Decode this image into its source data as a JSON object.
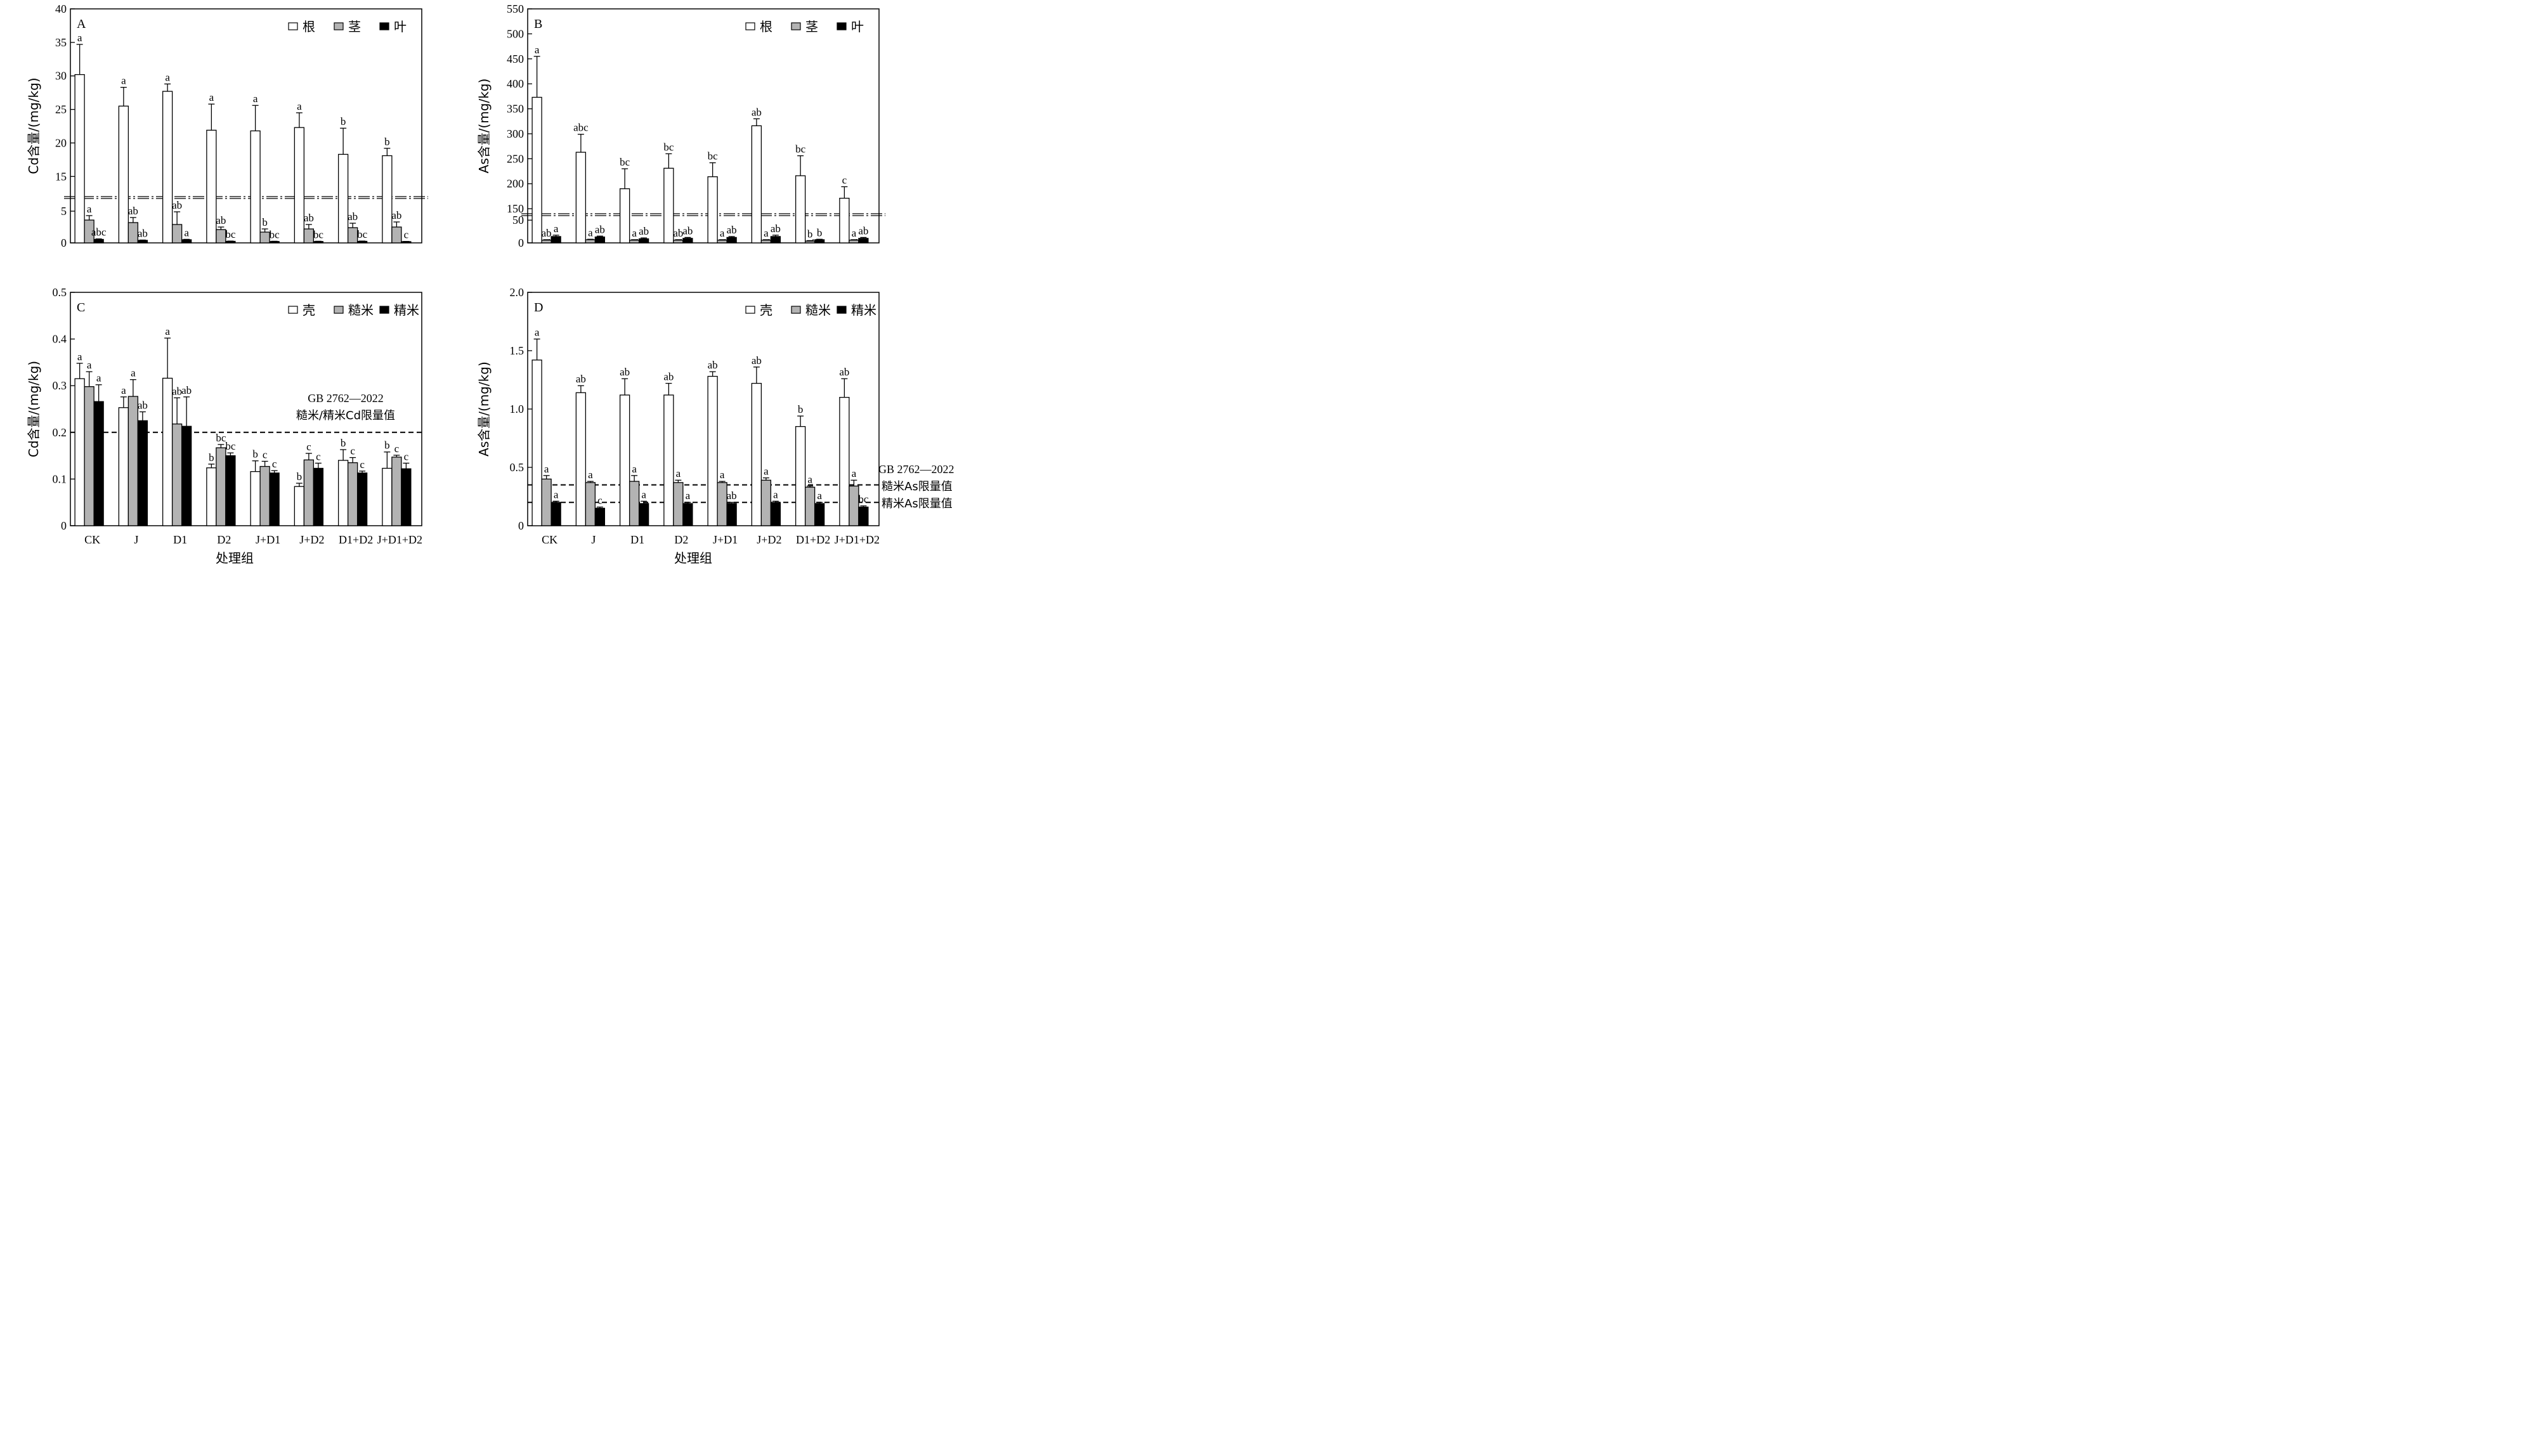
{
  "xlabel": "处理组",
  "categories": [
    "CK",
    "J",
    "D1",
    "D2",
    "J+D1",
    "J+D2",
    "D1+D2",
    "J+D1+D2"
  ],
  "chart_data": [
    {
      "panel": "A",
      "type": "bar",
      "ylabel": "Cd含量/(mg/kg)",
      "broken_axis": true,
      "ylim_lower": [
        0,
        7
      ],
      "ylim_upper": [
        12,
        40
      ],
      "yticks_lower": [
        0,
        5
      ],
      "yticks_upper": [
        15,
        20,
        25,
        30,
        35,
        40
      ],
      "legend": "top-right",
      "series": [
        {
          "name": "根",
          "fill": "#ffffff",
          "values": [
            30.2,
            25.5,
            27.7,
            21.9,
            21.8,
            22.3,
            18.3,
            18.1
          ],
          "errors": [
            4.5,
            2.8,
            1.1,
            3.9,
            3.8,
            2.2,
            3.9,
            1.1
          ],
          "labels": [
            "a",
            "a",
            "a",
            "a",
            "a",
            "a",
            "b",
            "b"
          ]
        },
        {
          "name": "茎",
          "fill": "#b3b3b3",
          "values": [
            3.6,
            3.2,
            2.9,
            2.1,
            1.7,
            2.2,
            2.4,
            2.5
          ],
          "errors": [
            0.7,
            0.8,
            2.0,
            0.4,
            0.5,
            0.7,
            0.7,
            0.8
          ],
          "labels": [
            "a",
            "ab",
            "ab",
            "ab",
            "b",
            "ab",
            "ab",
            "ab"
          ]
        },
        {
          "name": "叶",
          "fill": "#000000",
          "values": [
            0.55,
            0.4,
            0.5,
            0.25,
            0.22,
            0.22,
            0.25,
            0.2
          ],
          "errors": [
            0.08,
            0.05,
            0.06,
            0.04,
            0.04,
            0.04,
            0.04,
            0.03
          ],
          "labels": [
            "abc",
            "ab",
            "a",
            "bc",
            "bc",
            "bc",
            "bc",
            "c"
          ]
        }
      ]
    },
    {
      "panel": "B",
      "type": "bar",
      "ylabel": "As含量/(mg/kg)",
      "broken_axis": true,
      "ylim_lower": [
        0,
        60
      ],
      "ylim_upper": [
        140,
        550
      ],
      "yticks_lower": [
        0,
        50
      ],
      "yticks_upper": [
        150,
        200,
        250,
        300,
        350,
        400,
        450,
        500,
        550
      ],
      "legend": "top-right",
      "series": [
        {
          "name": "根",
          "fill": "#ffffff",
          "values": [
            373,
            263,
            190,
            231,
            214,
            316,
            216,
            171
          ],
          "errors": [
            82,
            36,
            40,
            29,
            28,
            14,
            40,
            23
          ],
          "labels": [
            "a",
            "abc",
            "bc",
            "bc",
            "bc",
            "ab",
            "bc",
            "c"
          ]
        },
        {
          "name": "茎",
          "fill": "#b3b3b3",
          "values": [
            6,
            7,
            6,
            6,
            6,
            6,
            4,
            6
          ],
          "errors": [
            1,
            1,
            1,
            1,
            1,
            1,
            1,
            1
          ],
          "labels": [
            "ab",
            "a",
            "a",
            "ab",
            "a",
            "a",
            "b",
            "a"
          ]
        },
        {
          "name": "叶",
          "fill": "#000000",
          "values": [
            14,
            13,
            9,
            10,
            12,
            14,
            7,
            10
          ],
          "errors": [
            3,
            2,
            2,
            2,
            2,
            3,
            1,
            2
          ],
          "labels": [
            "a",
            "ab",
            "ab",
            "ab",
            "ab",
            "ab",
            "b",
            "ab"
          ]
        }
      ]
    },
    {
      "panel": "C",
      "type": "bar",
      "ylabel": "Cd含量/(mg/kg)",
      "ylim": [
        0,
        0.5
      ],
      "yticks": [
        "0",
        "0.1",
        "0.2",
        "0.3",
        "0.4",
        "0.5"
      ],
      "legend": "top-right",
      "reference_lines": [
        {
          "value": 0.2
        }
      ],
      "annotation": [
        "GB 2762—2022",
        "糙米/精米Cd限量值"
      ],
      "series": [
        {
          "name": "壳",
          "fill": "#ffffff",
          "values": [
            0.315,
            0.253,
            0.316,
            0.124,
            0.116,
            0.084,
            0.14,
            0.123
          ],
          "errors": [
            0.033,
            0.023,
            0.086,
            0.008,
            0.023,
            0.007,
            0.023,
            0.035
          ],
          "labels": [
            "a",
            "a",
            "a",
            "b",
            "b",
            "b",
            "b",
            "b"
          ]
        },
        {
          "name": "糙米",
          "fill": "#b3b3b3",
          "values": [
            0.298,
            0.277,
            0.218,
            0.167,
            0.127,
            0.141,
            0.135,
            0.147
          ],
          "errors": [
            0.032,
            0.036,
            0.056,
            0.007,
            0.011,
            0.014,
            0.011,
            0.004
          ],
          "labels": [
            "a",
            "a",
            "ab",
            "bc",
            "c",
            "c",
            "c",
            "c"
          ]
        },
        {
          "name": "精米",
          "fill": "#000000",
          "values": [
            0.266,
            0.225,
            0.213,
            0.15,
            0.113,
            0.123,
            0.113,
            0.122
          ],
          "errors": [
            0.036,
            0.019,
            0.063,
            0.006,
            0.005,
            0.011,
            0.004,
            0.012
          ],
          "labels": [
            "a",
            "ab",
            "ab",
            "bc",
            "c",
            "c",
            "c",
            "c"
          ]
        }
      ]
    },
    {
      "panel": "D",
      "type": "bar",
      "ylabel": "As含量/(mg/kg)",
      "ylim": [
        0,
        2.0
      ],
      "yticks": [
        "0",
        "0.5",
        "1.0",
        "1.5",
        "2.0"
      ],
      "legend": "top-right",
      "reference_lines": [
        {
          "value": 0.35
        },
        {
          "value": 0.2
        }
      ],
      "annotation": [
        "GB 2762—2022",
        "糙米As限量值",
        "精米As限量值"
      ],
      "series": [
        {
          "name": "壳",
          "fill": "#ffffff",
          "values": [
            1.42,
            1.14,
            1.12,
            1.12,
            1.28,
            1.22,
            0.85,
            1.1
          ],
          "errors": [
            0.18,
            0.06,
            0.14,
            0.1,
            0.04,
            0.14,
            0.09,
            0.16
          ],
          "labels": [
            "a",
            "ab",
            "ab",
            "ab",
            "ab",
            "ab",
            "b",
            "ab"
          ]
        },
        {
          "name": "糙米",
          "fill": "#b3b3b3",
          "values": [
            0.4,
            0.37,
            0.38,
            0.37,
            0.37,
            0.39,
            0.33,
            0.34
          ],
          "errors": [
            0.03,
            0.01,
            0.05,
            0.02,
            0.01,
            0.02,
            0.01,
            0.05
          ],
          "labels": [
            "a",
            "a",
            "a",
            "a",
            "a",
            "a",
            "a",
            "a"
          ]
        },
        {
          "name": "精米",
          "fill": "#000000",
          "values": [
            0.2,
            0.15,
            0.19,
            0.19,
            0.19,
            0.2,
            0.19,
            0.16
          ],
          "errors": [
            0.01,
            0.01,
            0.02,
            0.01,
            0.01,
            0.01,
            0.01,
            0.01
          ],
          "labels": [
            "a",
            "c",
            "a",
            "a",
            "ab",
            "a",
            "a",
            "bc"
          ]
        }
      ]
    }
  ]
}
